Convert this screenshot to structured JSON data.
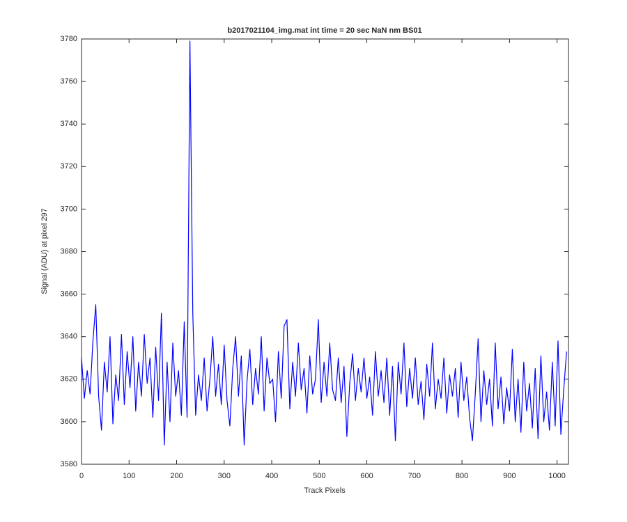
{
  "chart_data": {
    "type": "line",
    "title": "b2017021104_img.mat int time = 20 sec  NaN nm BS01",
    "xlabel": "Track Pixels",
    "ylabel": "Signal (ADU) at pixel 297",
    "xlim": [
      0,
      1024
    ],
    "ylim": [
      3580,
      3780
    ],
    "xticks": [
      0,
      100,
      200,
      300,
      400,
      500,
      600,
      700,
      800,
      900,
      1000
    ],
    "yticks": [
      3580,
      3600,
      3620,
      3640,
      3660,
      3680,
      3700,
      3720,
      3740,
      3760,
      3780
    ],
    "grid": false,
    "series": [
      {
        "color": "#0000ff",
        "x": [
          0,
          6,
          12,
          18,
          24,
          30,
          36,
          42,
          48,
          54,
          60,
          66,
          72,
          78,
          84,
          90,
          96,
          102,
          108,
          114,
          120,
          126,
          132,
          138,
          144,
          150,
          156,
          162,
          168,
          174,
          180,
          186,
          192,
          198,
          204,
          210,
          216,
          222,
          228,
          234,
          240,
          246,
          252,
          258,
          264,
          270,
          276,
          282,
          288,
          294,
          300,
          306,
          312,
          318,
          324,
          330,
          336,
          342,
          348,
          354,
          360,
          366,
          372,
          378,
          384,
          390,
          396,
          402,
          408,
          414,
          420,
          426,
          432,
          438,
          444,
          450,
          456,
          462,
          468,
          474,
          480,
          486,
          492,
          498,
          504,
          510,
          516,
          522,
          528,
          534,
          540,
          546,
          552,
          558,
          564,
          570,
          576,
          582,
          588,
          594,
          600,
          606,
          612,
          618,
          624,
          630,
          636,
          642,
          648,
          654,
          660,
          666,
          672,
          678,
          684,
          690,
          696,
          702,
          708,
          714,
          720,
          726,
          732,
          738,
          744,
          750,
          756,
          762,
          768,
          774,
          780,
          786,
          792,
          798,
          804,
          810,
          816,
          822,
          828,
          834,
          840,
          846,
          852,
          858,
          864,
          870,
          876,
          882,
          888,
          894,
          900,
          906,
          912,
          918,
          924,
          930,
          936,
          942,
          948,
          954,
          960,
          966,
          972,
          978,
          984,
          990,
          996,
          1002,
          1008,
          1014,
          1020
        ],
        "values": [
          3630,
          3611,
          3624,
          3613,
          3638,
          3655,
          3612,
          3596,
          3628,
          3614,
          3640,
          3599,
          3622,
          3610,
          3641,
          3608,
          3633,
          3616,
          3640,
          3605,
          3628,
          3612,
          3641,
          3618,
          3630,
          3602,
          3635,
          3610,
          3651,
          3589,
          3628,
          3600,
          3637,
          3612,
          3624,
          3603,
          3647,
          3602,
          3779,
          3651,
          3603,
          3622,
          3610,
          3630,
          3605,
          3620,
          3640,
          3612,
          3627,
          3608,
          3636,
          3610,
          3598,
          3625,
          3640,
          3612,
          3631,
          3589,
          3619,
          3634,
          3608,
          3625,
          3613,
          3640,
          3605,
          3630,
          3618,
          3620,
          3600,
          3633,
          3611,
          3645,
          3648,
          3606,
          3628,
          3612,
          3637,
          3615,
          3625,
          3604,
          3631,
          3613,
          3620,
          3648,
          3609,
          3628,
          3612,
          3637,
          3615,
          3610,
          3630,
          3609,
          3626,
          3593,
          3618,
          3632,
          3610,
          3625,
          3614,
          3630,
          3611,
          3621,
          3603,
          3633,
          3612,
          3624,
          3609,
          3630,
          3603,
          3626,
          3591,
          3628,
          3613,
          3637,
          3607,
          3625,
          3611,
          3630,
          3608,
          3619,
          3601,
          3627,
          3612,
          3637,
          3606,
          3620,
          3611,
          3630,
          3604,
          3622,
          3612,
          3625,
          3602,
          3628,
          3610,
          3621,
          3602,
          3591,
          3613,
          3639,
          3600,
          3624,
          3608,
          3620,
          3598,
          3637,
          3606,
          3621,
          3599,
          3616,
          3605,
          3634,
          3600,
          3620,
          3595,
          3628,
          3605,
          3618,
          3597,
          3625,
          3592,
          3631,
          3600,
          3614,
          3596,
          3628,
          3598,
          3638,
          3594,
          3615,
          3633
        ]
      }
    ]
  }
}
